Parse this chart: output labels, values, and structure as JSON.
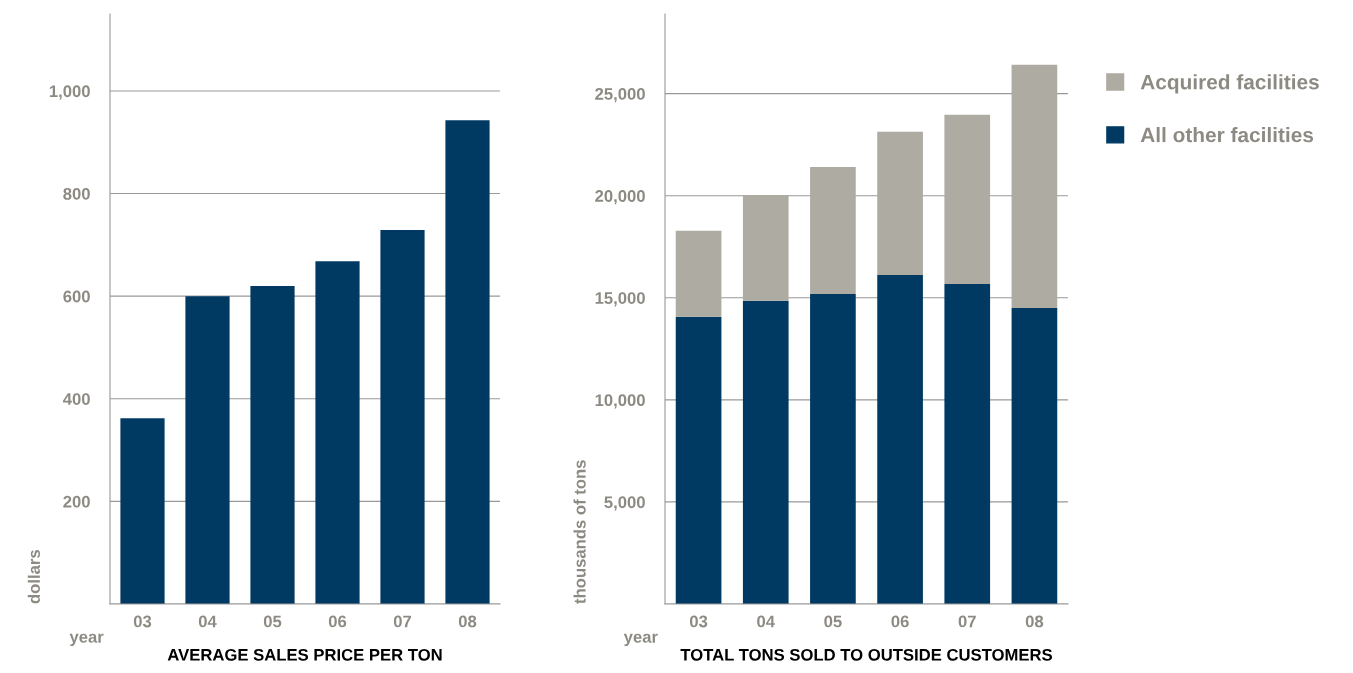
{
  "chart_data": [
    {
      "type": "bar",
      "title": "AVERAGE SALES PRICE PER TON",
      "xlabel": "year",
      "ylabel": "dollars",
      "categories": [
        "03",
        "04",
        "05",
        "06",
        "07",
        "08"
      ],
      "values": [
        362,
        600,
        620,
        668,
        729,
        943
      ],
      "color": "#003a63",
      "ylim": [
        0,
        1150
      ],
      "yticks": [
        {
          "value": 0,
          "label": null
        },
        200,
        400,
        600,
        800,
        {
          "value": 1000,
          "label": "1,000"
        }
      ],
      "grid": "y"
    },
    {
      "type": "bar",
      "stacked": true,
      "title": "TOTAL TONS SOLD TO OUTSIDE CUSTOMERS",
      "xlabel": "year",
      "ylabel": "thousands of tons",
      "categories": [
        "03",
        "04",
        "05",
        "06",
        "07",
        "08"
      ],
      "series": [
        {
          "name": "All other facilities",
          "color": "#003a63",
          "values": [
            14070,
            14850,
            15190,
            16120,
            15680,
            14500
          ]
        },
        {
          "name": "Acquired facilities",
          "color": "#aeaba3",
          "values": [
            4210,
            5190,
            6220,
            7010,
            8280,
            11910
          ]
        }
      ],
      "ylim": [
        0,
        28900
      ],
      "yticks": [
        {
          "value": 0,
          "label": null
        },
        {
          "value": 5000,
          "label": "5,000"
        },
        {
          "value": 10000,
          "label": "10,000"
        },
        {
          "value": 15000,
          "label": "15,000"
        },
        {
          "value": 20000,
          "label": "20,000"
        },
        {
          "value": 25000,
          "label": "25,000"
        }
      ],
      "grid": "y",
      "legend": "top right"
    }
  ]
}
